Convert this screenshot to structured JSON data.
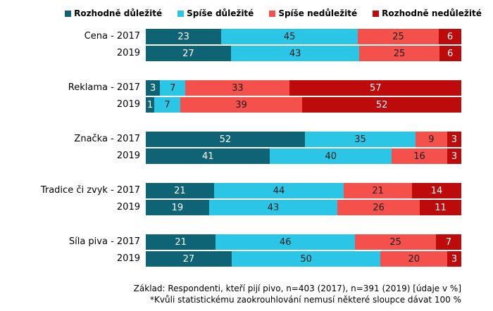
{
  "legend": {
    "items": [
      {
        "label": "Rozhodně důležité",
        "color": "#0E6475"
      },
      {
        "label": "Spíše důležité",
        "color": "#2BC5E5"
      },
      {
        "label": "Spíše nedůležité",
        "color": "#F5514C"
      },
      {
        "label": "Rozhodně nedůležité",
        "color": "#BD0B0B"
      }
    ]
  },
  "chart_data": {
    "type": "bar",
    "orientation": "horizontal",
    "stacked_percent": true,
    "unit": "%",
    "grid": false,
    "legend_position": "top",
    "xlim": [
      0,
      100
    ],
    "series_names": [
      "Rozhodně důležité",
      "Spíše důležité",
      "Spíše nedůležité",
      "Rozhodně nedůležité"
    ],
    "series_colors": [
      "#0E6475",
      "#2BC5E5",
      "#F5514C",
      "#BD0B0B"
    ],
    "value_label_colors": [
      "#FFFFFF",
      "#1A1A1A",
      "#1A1A1A",
      "#FFFFFF"
    ],
    "groups": [
      {
        "category": "Cena",
        "rows": [
          {
            "label": "Cena - 2017",
            "values": [
              23,
              45,
              25,
              6
            ]
          },
          {
            "label": "2019",
            "values": [
              27,
              43,
              25,
              6
            ]
          }
        ]
      },
      {
        "category": "Reklama",
        "rows": [
          {
            "label": "Reklama - 2017",
            "values": [
              3,
              7,
              33,
              57
            ]
          },
          {
            "label": "2019",
            "values": [
              1,
              7,
              39,
              52
            ]
          }
        ]
      },
      {
        "category": "Značka",
        "rows": [
          {
            "label": "Značka - 2017",
            "values": [
              52,
              35,
              9,
              3
            ]
          },
          {
            "label": "2019",
            "values": [
              41,
              40,
              16,
              3
            ]
          }
        ]
      },
      {
        "category": "Tradice či zvyk",
        "rows": [
          {
            "label": "Tradice či zvyk - 2017",
            "values": [
              21,
              44,
              21,
              14
            ]
          },
          {
            "label": "2019",
            "values": [
              19,
              43,
              26,
              11
            ]
          }
        ]
      },
      {
        "category": "Síla piva",
        "rows": [
          {
            "label": "Síla piva - 2017",
            "values": [
              21,
              46,
              25,
              7
            ]
          },
          {
            "label": "2019",
            "values": [
              27,
              50,
              20,
              3
            ]
          }
        ]
      }
    ]
  },
  "footnote": {
    "line1": "Základ: Respondenti, kteří pijí pivo, n=403 (2017), n=391 (2019) [údaje v %]",
    "line2": "*Kvůli statistickému zaokrouhlování nemusí některé sloupce dávat 100 %"
  }
}
